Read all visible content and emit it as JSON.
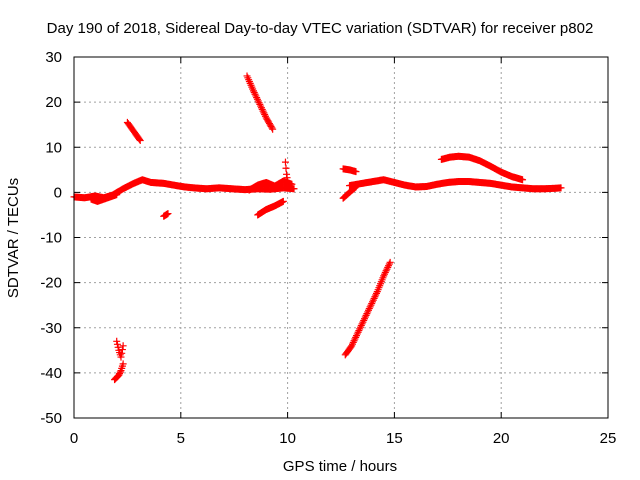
{
  "chart_data": {
    "type": "scatter",
    "title": "Day 190 of 2018, Sidereal Day-to-day VTEC variation (SDTVAR) for receiver p802",
    "xlabel": "GPS time / hours",
    "ylabel": "SDTVAR / TECUs",
    "xlim": [
      0,
      25
    ],
    "ylim": [
      -50,
      30
    ],
    "xticks": [
      0,
      5,
      10,
      15,
      20,
      25
    ],
    "yticks": [
      -50,
      -40,
      -30,
      -20,
      -10,
      0,
      10,
      20,
      30
    ],
    "grid": true,
    "marker": "+",
    "color": "#ff0000",
    "segments": [
      {
        "x": [
          0.0,
          0.5,
          1.0,
          1.4,
          1.8,
          2.3,
          2.8,
          3.2,
          3.6,
          4.2,
          4.8,
          5.2,
          5.6,
          6.2,
          6.8,
          7.4,
          8.0,
          8.6,
          9.2,
          9.8,
          10.3
        ],
        "y": [
          -1.0,
          -1.2,
          -0.8,
          -1.2,
          -0.6,
          0.8,
          2.0,
          2.8,
          2.2,
          2.0,
          1.5,
          1.2,
          1.0,
          0.8,
          1.0,
          0.8,
          0.6,
          0.8,
          0.7,
          1.0,
          0.8
        ]
      },
      {
        "x": [
          0.8,
          1.1,
          1.4,
          1.7,
          2.0
        ],
        "y": [
          -1.5,
          -2.0,
          -1.5,
          -1.0,
          -0.5
        ]
      },
      {
        "x": [
          2.5,
          2.8,
          3.1
        ],
        "y": [
          15.5,
          13.5,
          11.5
        ]
      },
      {
        "x": [
          4.2,
          4.4
        ],
        "y": [
          -5.3,
          -4.7
        ]
      },
      {
        "x": [
          2.0,
          2.1,
          2.2,
          2.3
        ],
        "y": [
          -33.0,
          -35.0,
          -36.5,
          -34.0
        ]
      },
      {
        "x": [
          1.9,
          2.0,
          2.1,
          2.2,
          2.3
        ],
        "y": [
          -41.5,
          -41.0,
          -40.5,
          -39.5,
          -38.0
        ]
      },
      {
        "x": [
          8.1,
          8.4,
          8.7,
          9.0,
          9.3
        ],
        "y": [
          25.8,
          22.5,
          19.5,
          16.5,
          14.0
        ]
      },
      {
        "x": [
          8.6,
          9.0,
          9.4,
          9.8
        ],
        "y": [
          -5.0,
          -3.8,
          -3.0,
          -2.0
        ]
      },
      {
        "x": [
          8.2,
          8.6,
          9.0,
          9.4,
          9.8,
          10.2
        ],
        "y": [
          0.5,
          1.6,
          2.2,
          1.4,
          2.5,
          1.8
        ]
      },
      {
        "x": [
          9.9,
          9.95,
          10.0
        ],
        "y": [
          6.7,
          4.0,
          2.5
        ]
      },
      {
        "x": [
          12.6,
          12.9,
          13.2
        ],
        "y": [
          5.2,
          5.0,
          4.6
        ]
      },
      {
        "x": [
          12.6,
          12.9,
          13.2
        ],
        "y": [
          -1.3,
          0.0,
          1.2
        ]
      },
      {
        "x": [
          12.7,
          13.0,
          13.3,
          13.6,
          13.9,
          14.2,
          14.5,
          14.8
        ],
        "y": [
          -36.0,
          -34.0,
          -31.0,
          -28.0,
          -25.0,
          -22.0,
          -18.5,
          -15.5
        ]
      },
      {
        "x": [
          12.9,
          13.5,
          14.0,
          14.5,
          15.0,
          15.5,
          16.0,
          16.5,
          17.0,
          17.5,
          18.0,
          18.5,
          19.0,
          19.5,
          20.0,
          20.5,
          21.0,
          21.5,
          22.0,
          22.5,
          22.8
        ],
        "y": [
          1.5,
          2.0,
          2.4,
          2.8,
          2.2,
          1.6,
          1.2,
          1.3,
          1.8,
          2.2,
          2.4,
          2.4,
          2.2,
          2.0,
          1.6,
          1.2,
          1.0,
          0.8,
          0.8,
          0.9,
          1.0
        ]
      },
      {
        "x": [
          17.2,
          17.6,
          18.0,
          18.5,
          19.0,
          19.5,
          20.0,
          20.5,
          21.0
        ],
        "y": [
          7.3,
          7.8,
          8.0,
          7.8,
          7.0,
          5.8,
          4.5,
          3.5,
          2.8
        ]
      }
    ]
  }
}
